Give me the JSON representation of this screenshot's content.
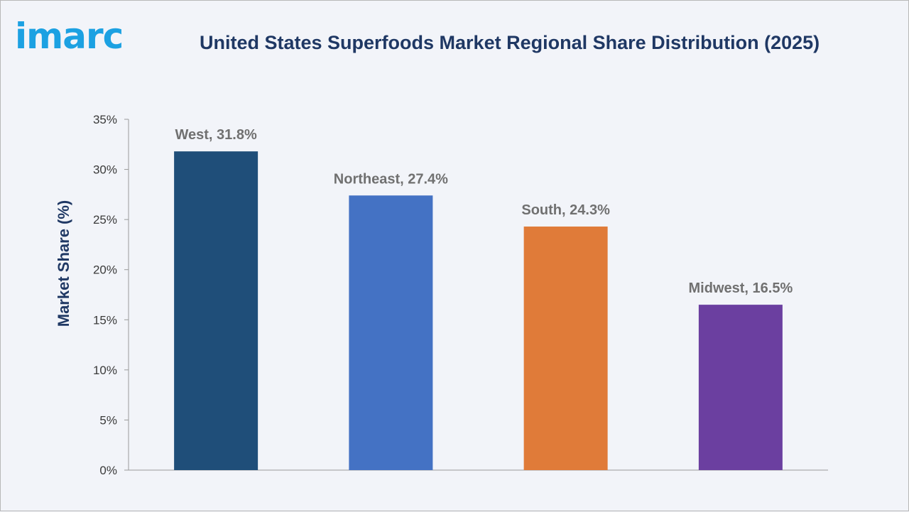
{
  "logo": {
    "text": "imarc"
  },
  "chart_data": {
    "type": "bar",
    "title": "United States Superfoods Market Regional Share Distribution (2025)",
    "ylabel": "Market Share (%)",
    "xlabel": "",
    "ylim": [
      0,
      35
    ],
    "yticks": [
      0,
      5,
      10,
      15,
      20,
      25,
      30,
      35
    ],
    "ytick_suffix": "%",
    "grid": false,
    "categories": [
      "West",
      "Northeast",
      "South",
      "Midwest"
    ],
    "values": [
      31.8,
      27.4,
      24.3,
      16.5
    ],
    "data_labels": [
      "West, 31.8%",
      "Northeast, 27.4%",
      "South, 24.3%",
      "Midwest, 16.5%"
    ],
    "colors": [
      "#1f4e79",
      "#4472c4",
      "#e07b39",
      "#6b3fa0"
    ]
  }
}
